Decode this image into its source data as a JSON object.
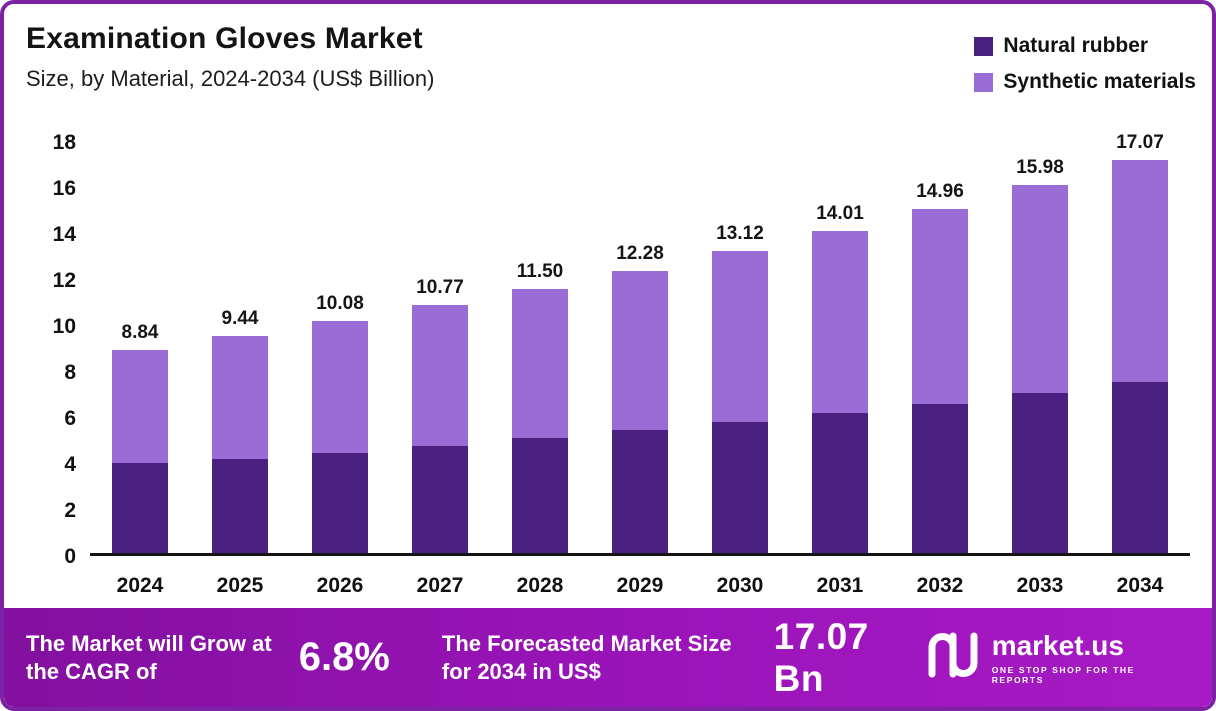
{
  "header": {
    "title": "Examination Gloves Market",
    "subtitle": "Size, by Material, 2024-2034 (US$ Billion)"
  },
  "chart_data": {
    "type": "bar",
    "stacked": true,
    "title": "Examination Gloves Market Size, by Material, 2024-2034 (US$ Billion)",
    "categories": [
      "2024",
      "2025",
      "2026",
      "2027",
      "2028",
      "2029",
      "2030",
      "2031",
      "2032",
      "2033",
      "2034"
    ],
    "series": [
      {
        "name": "Natural rubber",
        "color": "#4a2081",
        "values": [
          3.9,
          4.1,
          4.35,
          4.65,
          5.0,
          5.35,
          5.7,
          6.1,
          6.5,
          6.95,
          7.45
        ]
      },
      {
        "name": "Synthetic materials",
        "color": "#9b6bd6",
        "values": [
          4.94,
          5.34,
          5.73,
          6.12,
          6.5,
          6.93,
          7.42,
          7.91,
          8.46,
          9.03,
          9.62
        ]
      }
    ],
    "totals": [
      "8.84",
      "9.44",
      "10.08",
      "10.77",
      "11.50",
      "12.28",
      "13.12",
      "14.01",
      "14.96",
      "15.98",
      "17.07"
    ],
    "xlabel": "",
    "ylabel": "",
    "ylim": [
      0,
      18
    ],
    "yticks": [
      0,
      2,
      4,
      6,
      8,
      10,
      12,
      14,
      16,
      18
    ],
    "grid": false,
    "legend_position": "top-right"
  },
  "footer": {
    "cagr_label": "The Market will Grow at the CAGR of",
    "cagr_value": "6.8%",
    "forecast_label": "The Forecasted Market Size for 2034 in US$",
    "forecast_value": "17.07 Bn",
    "brand": "market.us",
    "brand_tagline": "ONE STOP SHOP FOR THE REPORTS"
  }
}
